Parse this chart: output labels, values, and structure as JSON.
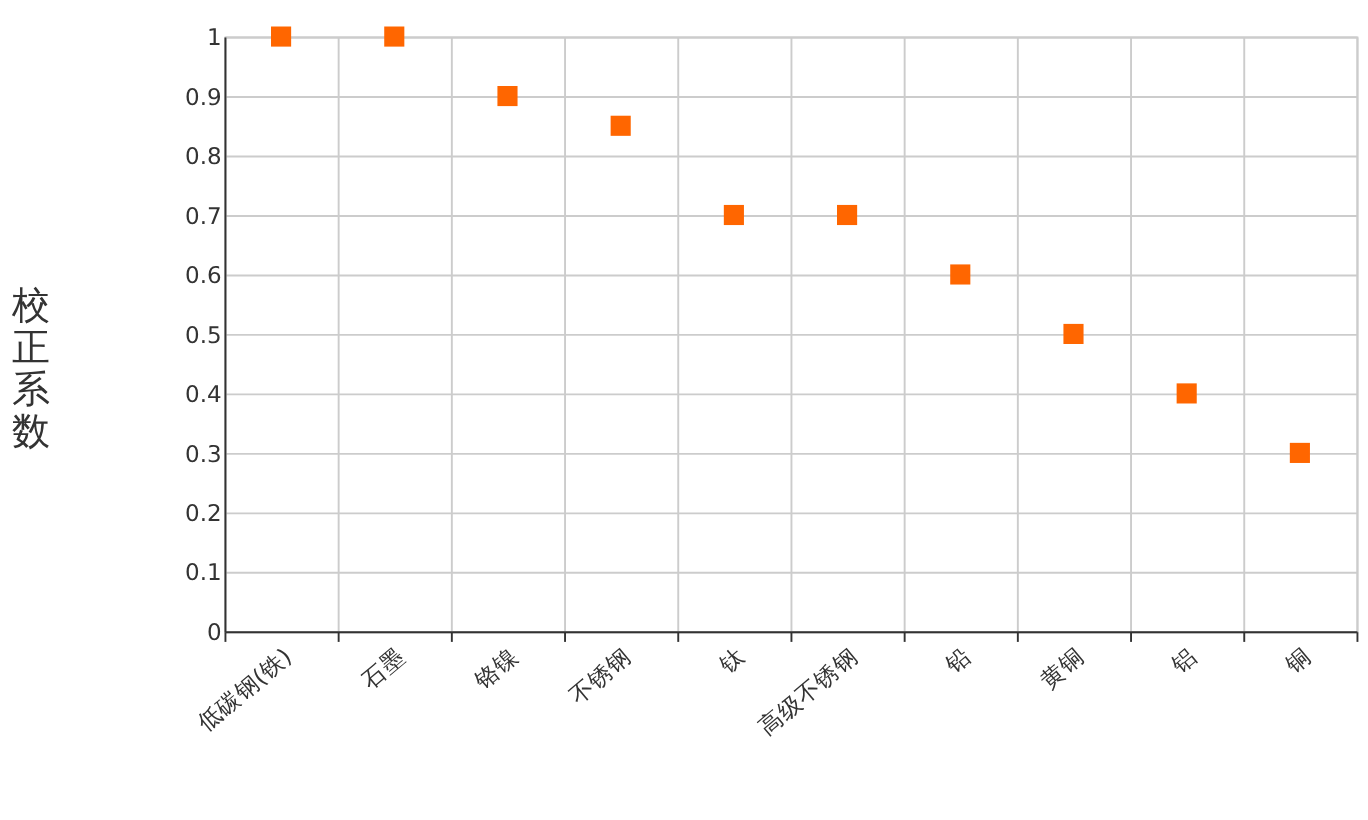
{
  "chart_data": {
    "type": "scatter",
    "ylabel": "校正系数",
    "categories": [
      "低碳钢(铁)",
      "石墨",
      "铬镍",
      "不锈钢",
      "钛",
      "高级不锈钢",
      "铅",
      "黄铜",
      "铝",
      "铜"
    ],
    "series": [
      {
        "color": "#ff6600",
        "values": [
          1,
          1,
          0.9,
          0.85,
          0.7,
          0.7,
          0.6,
          0.5,
          0.4,
          0.3
        ]
      }
    ],
    "ylim": [
      0,
      1
    ],
    "yticks": [
      0,
      0.1,
      0.2,
      0.3,
      0.4,
      0.5,
      0.6,
      0.7,
      0.8,
      0.9,
      1
    ],
    "grid": true,
    "marker": "square"
  }
}
